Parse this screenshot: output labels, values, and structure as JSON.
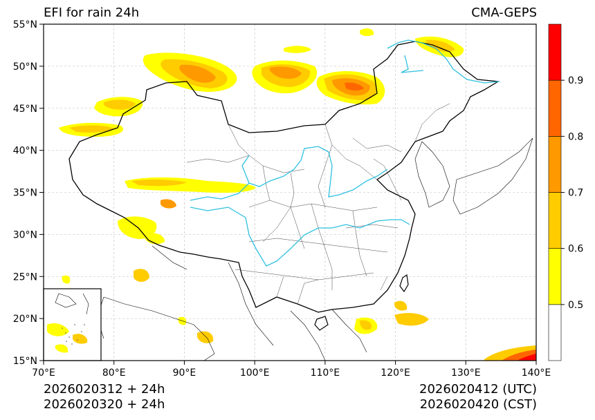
{
  "header": {
    "title": "EFI for rain 24h",
    "source": "CMA-GEPS"
  },
  "footer": {
    "init_utc": "2026020312 + 24h",
    "init_cst": "2026020320 + 24h",
    "valid_utc": "2026020412 (UTC)",
    "valid_cst": "2026020420 (CST)"
  },
  "map": {
    "lon_range": [
      70,
      140
    ],
    "lat_range": [
      15,
      55
    ],
    "lon_ticks": [
      "70°E",
      "80°E",
      "90°E",
      "100°E",
      "110°E",
      "120°E",
      "130°E",
      "140°E"
    ],
    "lat_ticks": [
      "15°N",
      "20°N",
      "25°N",
      "30°N",
      "35°N",
      "40°N",
      "45°N",
      "50°N",
      "55°N"
    ],
    "gridlines": true
  },
  "colorbar": {
    "levels": [
      0.4,
      0.5,
      0.6,
      0.7,
      0.8,
      0.9,
      1.0
    ],
    "labels": [
      "0.5",
      "0.6",
      "0.7",
      "0.8",
      "0.9"
    ],
    "colors": [
      "#ffffff",
      "#ffff00",
      "#ffcc00",
      "#ff9900",
      "#ff6600",
      "#ff0000"
    ]
  },
  "colors": {
    "river": "#2ec0e0",
    "border": "#000000",
    "province": "#333333"
  }
}
